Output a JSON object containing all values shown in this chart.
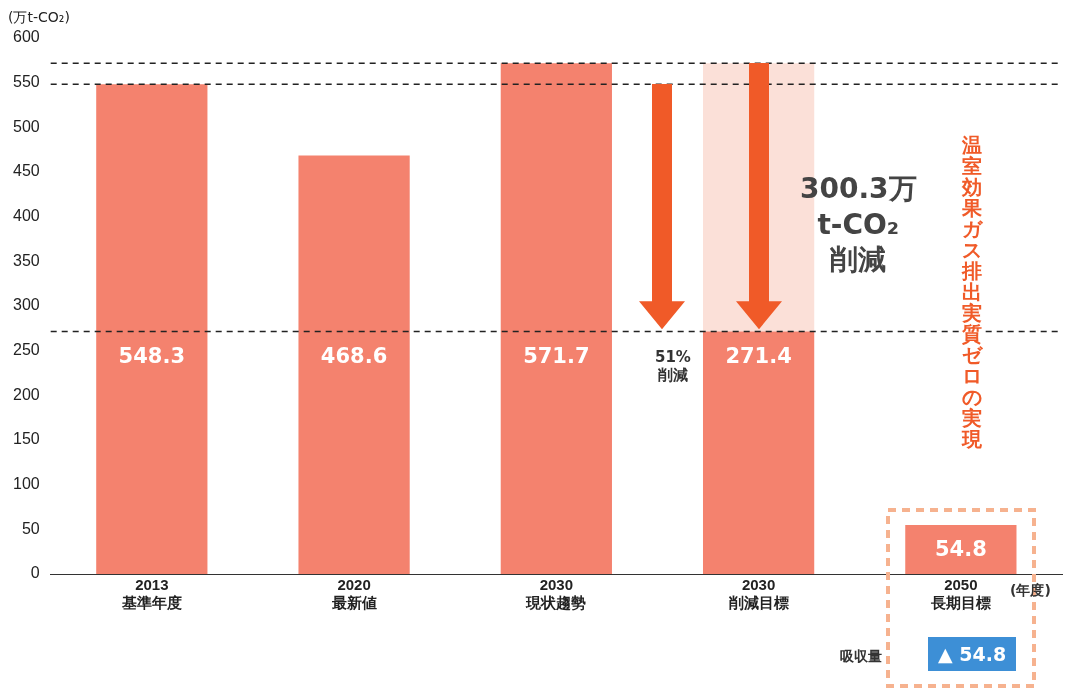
{
  "chart_data": {
    "type": "bar",
    "stacked": true,
    "ylabel": "(万t-CO₂)",
    "categories": [
      "2013\n基準年度",
      "2020\n最新値",
      "2030\n現状趨勢",
      "2030\n削減目標",
      "2050\n長期目標"
    ],
    "series": [
      {
        "color": "#f4826e",
        "values": [
          548.3,
          468.6,
          571.7,
          271.4,
          54.8
        ],
        "value_labels": [
          "548.3",
          "468.6",
          "571.7",
          "271.4",
          "54.8"
        ]
      },
      {
        "color": "#fbe0d8",
        "values": [
          null,
          null,
          null,
          300.3,
          null
        ]
      }
    ],
    "ylim": [
      0,
      600
    ],
    "yticks": [
      0,
      50,
      100,
      150,
      200,
      250,
      300,
      350,
      400,
      450,
      500,
      550,
      600
    ],
    "grid": false,
    "legend": false,
    "ref_lines": [
      {
        "axis": "y",
        "value": 548.3,
        "line_style": "dashed",
        "color": "#222222"
      },
      {
        "axis": "y",
        "value": 571.7,
        "line_style": "dashed",
        "color": "#222222"
      },
      {
        "axis": "y",
        "value": 271.4,
        "line_style": "dashed",
        "color": "#222222"
      }
    ],
    "annotations": [
      "300.3万\nt-CO₂\n削減",
      "51%\n削減",
      "温室効果ガス排出実質ゼロの実現",
      "(年度)",
      "吸収量",
      "▲ 54.8"
    ]
  }
}
